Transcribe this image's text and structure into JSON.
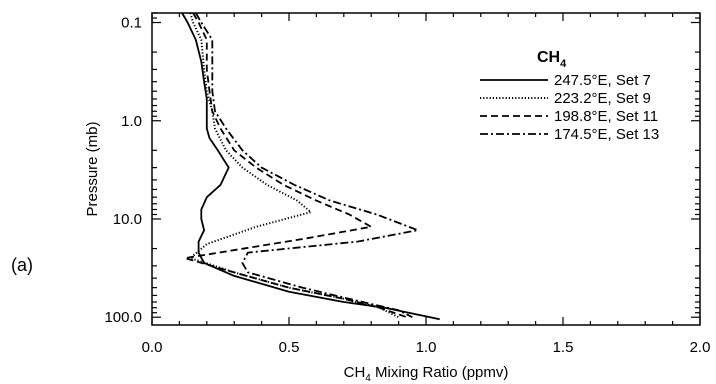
{
  "panel_label": "(a)",
  "chart_data": {
    "type": "line",
    "title": "",
    "xlabel": "CH",
    "xlabel_sub": "4",
    "xlabel_rest": " Mixing Ratio (ppmv)",
    "ylabel": "Pressure (mb)",
    "xlim": [
      0.0,
      2.0
    ],
    "ylim": [
      120,
      0.08
    ],
    "y_scale": "log",
    "y_reversed": true,
    "x_ticks": [
      "0.0",
      "0.5",
      "1.0",
      "1.5",
      "2.0"
    ],
    "x_tick_values": [
      0.0,
      0.5,
      1.0,
      1.5,
      2.0
    ],
    "y_ticks": [
      "0.1",
      "1.0",
      "10.0",
      "100.0"
    ],
    "y_tick_values": [
      0.1,
      1.0,
      10.0,
      100.0
    ],
    "legend": {
      "title": "CH",
      "title_sub": "4",
      "position": "top-right"
    },
    "series": [
      {
        "name": "247.5°E, Set 7",
        "style": "solid",
        "points": [
          [
            0.11,
            0.08
          ],
          [
            0.13,
            0.1
          ],
          [
            0.16,
            0.15
          ],
          [
            0.18,
            0.25
          ],
          [
            0.19,
            0.4
          ],
          [
            0.2,
            0.6
          ],
          [
            0.2,
            0.8
          ],
          [
            0.2,
            1.0
          ],
          [
            0.2,
            1.2
          ],
          [
            0.21,
            1.5
          ],
          [
            0.24,
            2.0
          ],
          [
            0.28,
            3.0
          ],
          [
            0.25,
            4.5
          ],
          [
            0.2,
            6.0
          ],
          [
            0.18,
            8.0
          ],
          [
            0.18,
            10.0
          ],
          [
            0.19,
            13.0
          ],
          [
            0.17,
            17.0
          ],
          [
            0.17,
            22.0
          ],
          [
            0.19,
            28.0
          ],
          [
            0.3,
            38.0
          ],
          [
            0.5,
            55.0
          ],
          [
            0.7,
            70.0
          ],
          [
            0.85,
            80.0
          ],
          [
            1.05,
            105.0
          ]
        ]
      },
      {
        "name": "223.2°E, Set 9",
        "style": "dotted",
        "points": [
          [
            0.14,
            0.08
          ],
          [
            0.15,
            0.1
          ],
          [
            0.18,
            0.15
          ],
          [
            0.19,
            0.3
          ],
          [
            0.2,
            0.5
          ],
          [
            0.22,
            0.8
          ],
          [
            0.23,
            1.2
          ],
          [
            0.27,
            2.0
          ],
          [
            0.33,
            3.0
          ],
          [
            0.42,
            4.5
          ],
          [
            0.53,
            6.5
          ],
          [
            0.58,
            8.5
          ],
          [
            0.38,
            12.0
          ],
          [
            0.2,
            18.0
          ],
          [
            0.14,
            25.0
          ],
          [
            0.3,
            35.0
          ],
          [
            0.5,
            50.0
          ],
          [
            0.7,
            65.0
          ],
          [
            0.83,
            80.0
          ],
          [
            0.9,
            100.0
          ]
        ]
      },
      {
        "name": "198.8°E, Set 11",
        "style": "dashed",
        "points": [
          [
            0.15,
            0.08
          ],
          [
            0.17,
            0.1
          ],
          [
            0.2,
            0.15
          ],
          [
            0.2,
            0.3
          ],
          [
            0.21,
            0.5
          ],
          [
            0.22,
            0.8
          ],
          [
            0.25,
            1.2
          ],
          [
            0.3,
            2.0
          ],
          [
            0.38,
            3.0
          ],
          [
            0.48,
            4.5
          ],
          [
            0.6,
            6.5
          ],
          [
            0.72,
            9.0
          ],
          [
            0.8,
            12.0
          ],
          [
            0.55,
            16.0
          ],
          [
            0.12,
            25.0
          ],
          [
            0.3,
            35.0
          ],
          [
            0.5,
            50.0
          ],
          [
            0.7,
            65.0
          ],
          [
            0.83,
            80.0
          ],
          [
            0.93,
            100.0
          ]
        ]
      },
      {
        "name": "174.5°E, Set 13",
        "style": "dashdot",
        "points": [
          [
            0.16,
            0.08
          ],
          [
            0.18,
            0.1
          ],
          [
            0.22,
            0.15
          ],
          [
            0.22,
            0.3
          ],
          [
            0.22,
            0.5
          ],
          [
            0.23,
            0.8
          ],
          [
            0.27,
            1.2
          ],
          [
            0.33,
            2.0
          ],
          [
            0.4,
            3.0
          ],
          [
            0.52,
            4.5
          ],
          [
            0.65,
            6.5
          ],
          [
            0.82,
            9.0
          ],
          [
            0.97,
            13.0
          ],
          [
            0.75,
            17.0
          ],
          [
            0.35,
            22.0
          ],
          [
            0.33,
            28.0
          ],
          [
            0.35,
            35.0
          ],
          [
            0.55,
            50.0
          ],
          [
            0.75,
            68.0
          ],
          [
            0.9,
            85.0
          ],
          [
            0.95,
            100.0
          ]
        ]
      }
    ]
  }
}
